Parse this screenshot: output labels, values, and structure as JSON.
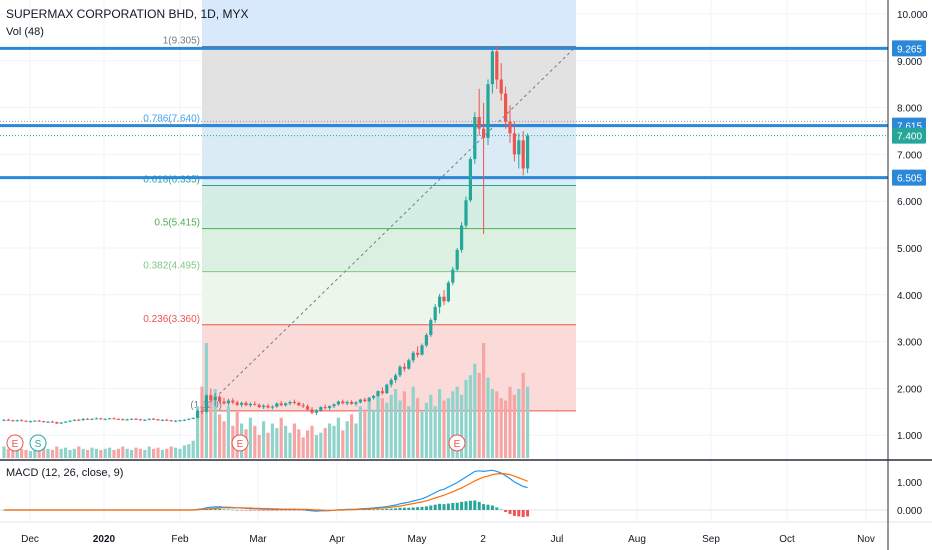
{
  "header": {
    "symbol_title": "SUPERMAX CORPORATION BHD, 1D, MYX",
    "volume_label": "Vol (48)",
    "macd_label": "MACD (12, 26, close, 9)"
  },
  "colors": {
    "up": "#26a69a",
    "down": "#ef5350",
    "hline": "#2b88d8",
    "macd_line": "#2196f3",
    "signal_line": "#ff6d00",
    "axis_text": "#131722"
  },
  "chart_data": [
    {
      "type": "candlestick",
      "x_ticks": [
        "Dec",
        "2020",
        "Feb",
        "Mar",
        "Apr",
        "May",
        "2",
        "Jul",
        "Aug",
        "Sep",
        "Oct",
        "Nov"
      ],
      "y_ticks": [
        "10.000",
        "9.000",
        "8.000",
        "7.000",
        "6.000",
        "5.000",
        "4.000",
        "3.000",
        "2.000",
        "1.000"
      ],
      "ylim": [
        0.5,
        10.3
      ],
      "price_labels": [
        "9.265",
        "7.615",
        "7.400",
        "6.505"
      ],
      "horizontal_levels": [
        9.265,
        7.615,
        6.505
      ],
      "last_price": 7.4,
      "fib_levels": [
        {
          "label": "1(9.305)",
          "value": 9.305
        },
        {
          "label": "0.786(7.640)",
          "value": 7.64
        },
        {
          "label": "0.618(6.335)",
          "value": 6.335
        },
        {
          "label": "0.5(5.415)",
          "value": 5.415
        },
        {
          "label": "0.382(4.495)",
          "value": 4.495
        },
        {
          "label": "0.236(3.360)",
          "value": 3.36
        },
        {
          "label": "(1.520)",
          "value": 1.52
        }
      ],
      "event_markers": [
        "E",
        "S",
        "E",
        "E"
      ],
      "candles": [
        [
          1.32,
          1.34,
          1.3,
          1.33
        ],
        [
          1.33,
          1.35,
          1.31,
          1.32
        ],
        [
          1.32,
          1.33,
          1.29,
          1.3
        ],
        [
          1.3,
          1.33,
          1.29,
          1.32
        ],
        [
          1.32,
          1.34,
          1.3,
          1.31
        ],
        [
          1.31,
          1.32,
          1.28,
          1.29
        ],
        [
          1.29,
          1.31,
          1.27,
          1.3
        ],
        [
          1.3,
          1.32,
          1.29,
          1.31
        ],
        [
          1.31,
          1.33,
          1.29,
          1.3
        ],
        [
          1.3,
          1.31,
          1.27,
          1.28
        ],
        [
          1.28,
          1.3,
          1.26,
          1.29
        ],
        [
          1.29,
          1.31,
          1.27,
          1.28
        ],
        [
          1.28,
          1.29,
          1.24,
          1.25
        ],
        [
          1.25,
          1.28,
          1.24,
          1.27
        ],
        [
          1.27,
          1.3,
          1.26,
          1.29
        ],
        [
          1.29,
          1.32,
          1.28,
          1.31
        ],
        [
          1.31,
          1.34,
          1.3,
          1.33
        ],
        [
          1.33,
          1.35,
          1.31,
          1.32
        ],
        [
          1.32,
          1.36,
          1.31,
          1.35
        ],
        [
          1.35,
          1.37,
          1.33,
          1.34
        ],
        [
          1.34,
          1.36,
          1.32,
          1.35
        ],
        [
          1.35,
          1.38,
          1.34,
          1.36
        ],
        [
          1.36,
          1.37,
          1.33,
          1.34
        ],
        [
          1.34,
          1.36,
          1.32,
          1.35
        ],
        [
          1.35,
          1.37,
          1.34,
          1.36
        ],
        [
          1.36,
          1.38,
          1.34,
          1.35
        ],
        [
          1.35,
          1.36,
          1.33,
          1.34
        ],
        [
          1.34,
          1.36,
          1.32,
          1.33
        ],
        [
          1.33,
          1.35,
          1.31,
          1.34
        ],
        [
          1.34,
          1.36,
          1.33,
          1.35
        ],
        [
          1.35,
          1.37,
          1.33,
          1.34
        ],
        [
          1.34,
          1.35,
          1.31,
          1.32
        ],
        [
          1.32,
          1.34,
          1.3,
          1.33
        ],
        [
          1.33,
          1.36,
          1.32,
          1.35
        ],
        [
          1.35,
          1.37,
          1.33,
          1.34
        ],
        [
          1.34,
          1.35,
          1.31,
          1.32
        ],
        [
          1.32,
          1.34,
          1.3,
          1.33
        ],
        [
          1.33,
          1.35,
          1.31,
          1.32
        ],
        [
          1.32,
          1.33,
          1.29,
          1.3
        ],
        [
          1.3,
          1.32,
          1.28,
          1.31
        ],
        [
          1.31,
          1.33,
          1.29,
          1.32
        ],
        [
          1.32,
          1.34,
          1.3,
          1.33
        ],
        [
          1.33,
          1.36,
          1.32,
          1.35
        ],
        [
          1.35,
          1.38,
          1.34,
          1.37
        ],
        [
          1.37,
          1.55,
          1.36,
          1.52
        ],
        [
          1.52,
          1.62,
          1.45,
          1.5
        ],
        [
          1.5,
          1.88,
          1.48,
          1.85
        ],
        [
          1.85,
          2.0,
          1.7,
          1.75
        ],
        [
          1.75,
          1.9,
          1.62,
          1.82
        ],
        [
          1.82,
          1.86,
          1.68,
          1.72
        ],
        [
          1.72,
          1.8,
          1.65,
          1.68
        ],
        [
          1.68,
          1.78,
          1.63,
          1.74
        ],
        [
          1.74,
          1.79,
          1.66,
          1.7
        ],
        [
          1.7,
          1.74,
          1.62,
          1.65
        ],
        [
          1.65,
          1.72,
          1.6,
          1.69
        ],
        [
          1.69,
          1.73,
          1.62,
          1.64
        ],
        [
          1.64,
          1.7,
          1.6,
          1.67
        ],
        [
          1.67,
          1.72,
          1.63,
          1.65
        ],
        [
          1.65,
          1.68,
          1.58,
          1.6
        ],
        [
          1.6,
          1.66,
          1.56,
          1.63
        ],
        [
          1.63,
          1.67,
          1.57,
          1.59
        ],
        [
          1.59,
          1.64,
          1.55,
          1.61
        ],
        [
          1.61,
          1.7,
          1.59,
          1.68
        ],
        [
          1.68,
          1.73,
          1.62,
          1.64
        ],
        [
          1.64,
          1.7,
          1.61,
          1.68
        ],
        [
          1.68,
          1.74,
          1.64,
          1.71
        ],
        [
          1.71,
          1.76,
          1.66,
          1.69
        ],
        [
          1.69,
          1.72,
          1.62,
          1.64
        ],
        [
          1.64,
          1.69,
          1.58,
          1.62
        ],
        [
          1.62,
          1.66,
          1.52,
          1.55
        ],
        [
          1.55,
          1.6,
          1.45,
          1.48
        ],
        [
          1.48,
          1.56,
          1.43,
          1.53
        ],
        [
          1.53,
          1.62,
          1.5,
          1.6
        ],
        [
          1.6,
          1.66,
          1.55,
          1.58
        ],
        [
          1.58,
          1.64,
          1.54,
          1.62
        ],
        [
          1.62,
          1.68,
          1.58,
          1.66
        ],
        [
          1.66,
          1.74,
          1.63,
          1.72
        ],
        [
          1.72,
          1.76,
          1.66,
          1.68
        ],
        [
          1.68,
          1.74,
          1.64,
          1.71
        ],
        [
          1.71,
          1.75,
          1.65,
          1.67
        ],
        [
          1.67,
          1.73,
          1.62,
          1.7
        ],
        [
          1.7,
          1.78,
          1.68,
          1.76
        ],
        [
          1.76,
          1.8,
          1.7,
          1.73
        ],
        [
          1.73,
          1.82,
          1.71,
          1.8
        ],
        [
          1.8,
          1.86,
          1.76,
          1.84
        ],
        [
          1.84,
          1.96,
          1.82,
          1.94
        ],
        [
          1.94,
          2.02,
          1.86,
          1.9
        ],
        [
          1.9,
          2.1,
          1.88,
          2.08
        ],
        [
          2.08,
          2.22,
          2.02,
          2.18
        ],
        [
          2.18,
          2.32,
          2.12,
          2.28
        ],
        [
          2.28,
          2.5,
          2.24,
          2.46
        ],
        [
          2.46,
          2.54,
          2.36,
          2.42
        ],
        [
          2.42,
          2.64,
          2.4,
          2.6
        ],
        [
          2.6,
          2.8,
          2.55,
          2.76
        ],
        [
          2.76,
          2.9,
          2.66,
          2.72
        ],
        [
          2.72,
          2.96,
          2.7,
          2.92
        ],
        [
          2.92,
          3.18,
          2.88,
          3.14
        ],
        [
          3.14,
          3.5,
          3.1,
          3.46
        ],
        [
          3.46,
          3.8,
          3.4,
          3.74
        ],
        [
          3.74,
          4.02,
          3.6,
          3.96
        ],
        [
          3.96,
          4.1,
          3.78,
          3.86
        ],
        [
          3.86,
          4.3,
          3.84,
          4.26
        ],
        [
          4.26,
          4.6,
          4.2,
          4.54
        ],
        [
          4.54,
          5.0,
          4.5,
          4.96
        ],
        [
          4.96,
          5.55,
          4.9,
          5.48
        ],
        [
          5.48,
          6.1,
          5.42,
          6.02
        ],
        [
          6.02,
          6.95,
          5.98,
          6.9
        ],
        [
          6.9,
          7.9,
          6.8,
          7.8
        ],
        [
          7.8,
          8.4,
          7.4,
          7.55
        ],
        [
          7.55,
          8.1,
          5.3,
          7.35
        ],
        [
          7.35,
          8.6,
          7.2,
          8.5
        ],
        [
          8.5,
          9.3,
          8.3,
          9.2
        ],
        [
          9.2,
          9.32,
          8.4,
          8.6
        ],
        [
          8.6,
          8.95,
          8.15,
          8.3
        ],
        [
          8.3,
          8.45,
          7.55,
          7.7
        ],
        [
          7.7,
          8.05,
          7.25,
          7.45
        ],
        [
          7.45,
          7.7,
          6.85,
          7.0
        ],
        [
          7.0,
          7.45,
          6.7,
          7.3
        ],
        [
          7.3,
          7.5,
          6.55,
          6.7
        ],
        [
          6.7,
          7.45,
          6.6,
          7.4
        ]
      ],
      "volumes": [
        0.1,
        0.08,
        0.07,
        0.09,
        0.08,
        0.07,
        0.06,
        0.08,
        0.07,
        0.09,
        0.08,
        0.07,
        0.1,
        0.08,
        0.09,
        0.07,
        0.08,
        0.1,
        0.08,
        0.07,
        0.09,
        0.08,
        0.07,
        0.08,
        0.09,
        0.07,
        0.08,
        0.1,
        0.08,
        0.07,
        0.09,
        0.08,
        0.07,
        0.1,
        0.08,
        0.09,
        0.07,
        0.08,
        0.1,
        0.09,
        0.08,
        0.11,
        0.12,
        0.15,
        0.45,
        0.62,
        1.0,
        0.55,
        0.6,
        0.38,
        0.32,
        0.45,
        0.28,
        0.4,
        0.3,
        0.25,
        0.35,
        0.28,
        0.2,
        0.32,
        0.22,
        0.3,
        0.26,
        0.35,
        0.28,
        0.22,
        0.3,
        0.25,
        0.18,
        0.24,
        0.28,
        0.2,
        0.22,
        0.26,
        0.3,
        0.28,
        0.35,
        0.24,
        0.32,
        0.38,
        0.3,
        0.45,
        0.4,
        0.5,
        0.42,
        0.58,
        0.52,
        0.48,
        0.55,
        0.6,
        0.5,
        0.58,
        0.45,
        0.62,
        0.52,
        0.4,
        0.48,
        0.55,
        0.45,
        0.6,
        0.5,
        0.52,
        0.58,
        0.62,
        0.55,
        0.68,
        0.72,
        0.82,
        0.74,
        1.0,
        0.7,
        0.6,
        0.58,
        0.52,
        0.5,
        0.62,
        0.55,
        0.6,
        0.74,
        0.62
      ]
    },
    {
      "type": "line",
      "name": "MACD (12, 26, close, 9)",
      "y_ticks": [
        "1.000",
        "0.000"
      ],
      "ylim": [
        -0.55,
        1.45
      ],
      "series": [
        {
          "values": [
            0,
            0,
            0,
            0,
            0,
            0,
            0,
            0,
            0,
            0,
            0,
            0,
            0,
            0,
            0,
            0,
            0,
            0,
            0,
            0,
            0,
            0,
            0,
            0,
            0,
            0,
            0,
            0,
            0,
            0,
            0,
            0,
            0,
            0,
            0,
            0,
            0,
            0,
            0,
            0,
            0,
            0,
            0,
            0,
            0.02,
            0.04,
            0.08,
            0.1,
            0.11,
            0.11,
            0.1,
            0.1,
            0.09,
            0.08,
            0.07,
            0.06,
            0.05,
            0.05,
            0.04,
            0.03,
            0.03,
            0.02,
            0.02,
            0.02,
            0.02,
            0.02,
            0.02,
            0.01,
            0.01,
            -0.01,
            -0.03,
            -0.04,
            -0.03,
            -0.03,
            -0.02,
            -0.01,
            0.01,
            0.01,
            0.02,
            0.02,
            0.03,
            0.04,
            0.05,
            0.06,
            0.07,
            0.09,
            0.1,
            0.12,
            0.15,
            0.18,
            0.22,
            0.25,
            0.28,
            0.32,
            0.36,
            0.4,
            0.46,
            0.54,
            0.62,
            0.7,
            0.74,
            0.82,
            0.9,
            0.98,
            1.08,
            1.18,
            1.28,
            1.38,
            1.4,
            1.38,
            1.4,
            1.42,
            1.38,
            1.32,
            1.22,
            1.12,
            1.0,
            0.92,
            0.84,
            0.8
          ]
        },
        {
          "values": [
            0,
            0,
            0,
            0,
            0,
            0,
            0,
            0,
            0,
            0,
            0,
            0,
            0,
            0,
            0,
            0,
            0,
            0,
            0,
            0,
            0,
            0,
            0,
            0,
            0,
            0,
            0,
            0,
            0,
            0,
            0,
            0,
            0,
            0,
            0,
            0,
            0,
            0,
            0,
            0,
            0,
            0,
            0,
            0,
            0.01,
            0.02,
            0.03,
            0.05,
            0.06,
            0.07,
            0.08,
            0.08,
            0.08,
            0.08,
            0.08,
            0.07,
            0.07,
            0.06,
            0.06,
            0.05,
            0.05,
            0.04,
            0.04,
            0.03,
            0.03,
            0.03,
            0.03,
            0.02,
            0.02,
            0.02,
            0.01,
            0.0,
            0.0,
            -0.01,
            -0.01,
            -0.01,
            0.0,
            0.0,
            0.01,
            0.01,
            0.02,
            0.02,
            0.03,
            0.04,
            0.05,
            0.06,
            0.07,
            0.08,
            0.1,
            0.12,
            0.14,
            0.17,
            0.2,
            0.23,
            0.26,
            0.29,
            0.33,
            0.38,
            0.43,
            0.48,
            0.53,
            0.59,
            0.65,
            0.72,
            0.79,
            0.87,
            0.95,
            1.04,
            1.11,
            1.17,
            1.21,
            1.26,
            1.29,
            1.3,
            1.29,
            1.26,
            1.21,
            1.15,
            1.09,
            1.03
          ]
        }
      ]
    }
  ]
}
